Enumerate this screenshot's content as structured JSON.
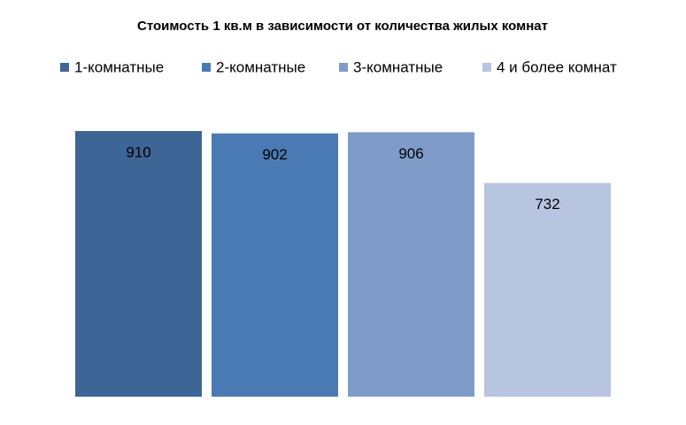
{
  "chart_data": {
    "type": "bar",
    "title": "Стоимость 1 кв.м в зависимости от количества жилых комнат",
    "categories": [
      null
    ],
    "series": [
      {
        "name": "1-комнатные",
        "color": "#3d6596",
        "values": [
          910
        ]
      },
      {
        "name": "2-комнатные",
        "color": "#4a7ab4",
        "values": [
          902
        ]
      },
      {
        "name": "3-комнатные",
        "color": "#7f9cc9",
        "values": [
          906
        ]
      },
      {
        "name": "4 и более комнат",
        "color": "#b7c5e0",
        "values": [
          732
        ]
      }
    ],
    "legend": "top"
  }
}
